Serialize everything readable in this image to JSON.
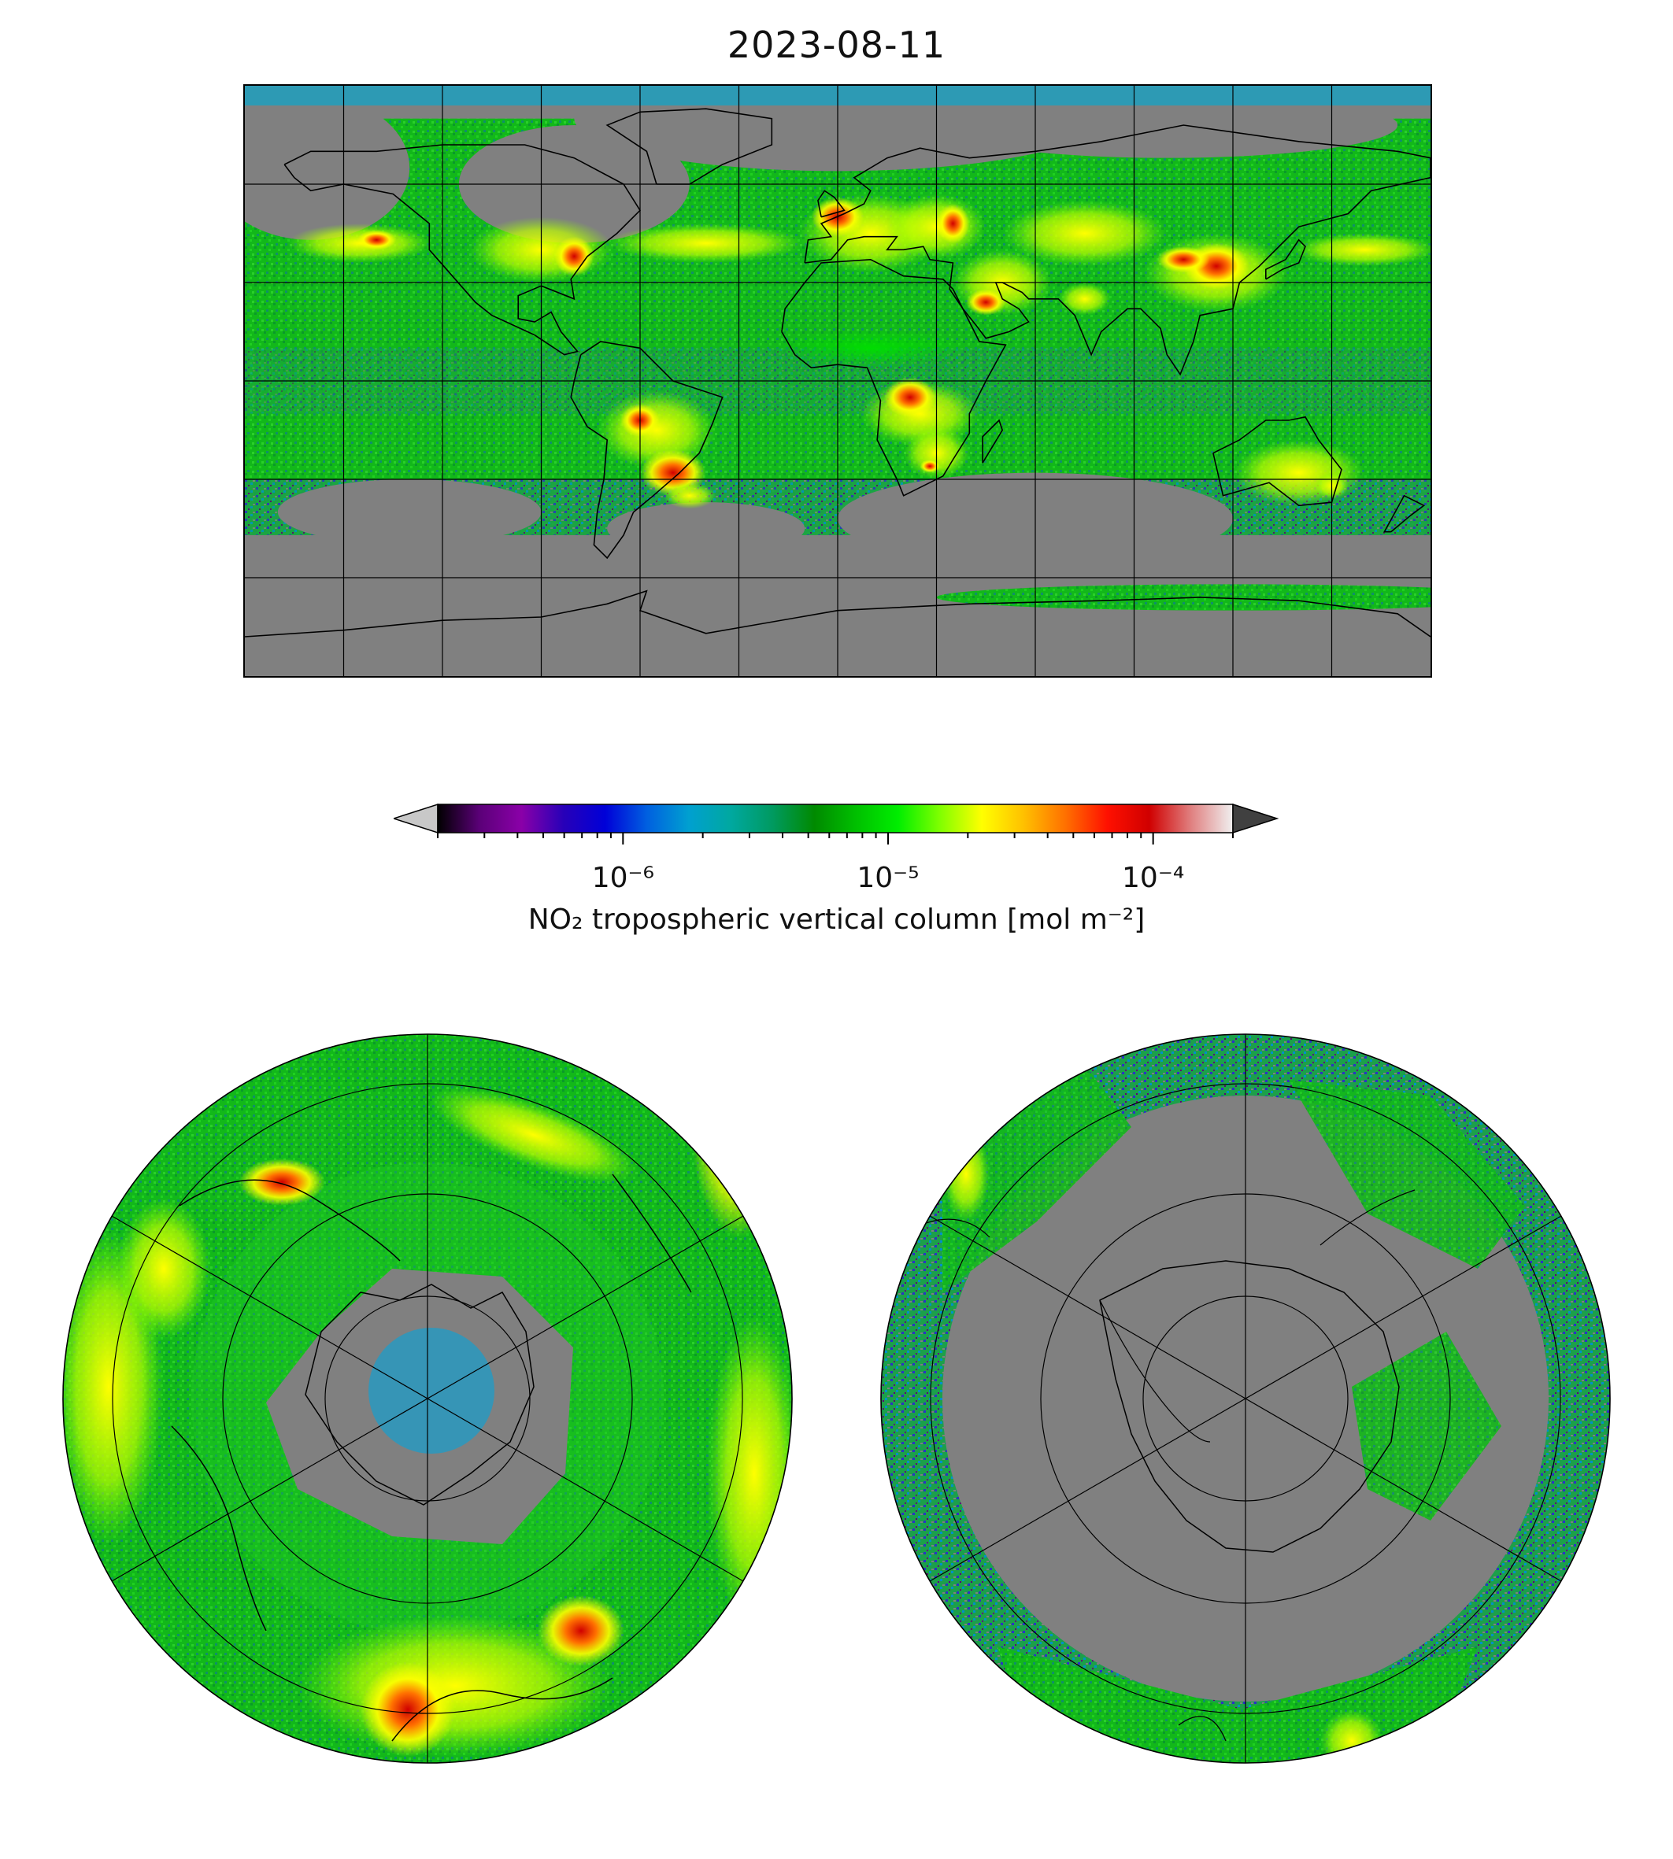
{
  "figure": {
    "title": "2023-08-11"
  },
  "colorbar": {
    "label": "NO₂ tropospheric vertical column [mol m⁻²]",
    "scale": "log",
    "range": [
      2e-07,
      0.0002
    ],
    "extend": "both",
    "ticks": [
      {
        "value": 1e-06,
        "label": "10⁻⁶"
      },
      {
        "value": 1e-05,
        "label": "10⁻⁵"
      },
      {
        "value": 0.0001,
        "label": "10⁻⁴"
      }
    ],
    "colors": [
      "#000000",
      "#5b0078",
      "#8a00a8",
      "#2800b8",
      "#0000d8",
      "#0060e0",
      "#00a0d0",
      "#00a8a0",
      "#009a60",
      "#008a00",
      "#00c000",
      "#00ee00",
      "#80ff00",
      "#ffff00",
      "#ffc000",
      "#ff7000",
      "#ff1000",
      "#d00000",
      "#e08080",
      "#f0f0f0"
    ],
    "under_color": "#c8c8c8",
    "over_color": "#404040"
  },
  "maps": {
    "world": {
      "projection": "plate-carree",
      "extent": [
        -180,
        180,
        -90,
        90
      ],
      "gridlines_lon_step": 30,
      "gridlines_lat_step": 30,
      "no_data_color": "#808080"
    },
    "north_polar": {
      "projection": "north-polar-stereographic",
      "no_data_color": "#808080"
    },
    "south_polar": {
      "projection": "south-polar-stereographic",
      "no_data_color": "#808080"
    }
  }
}
